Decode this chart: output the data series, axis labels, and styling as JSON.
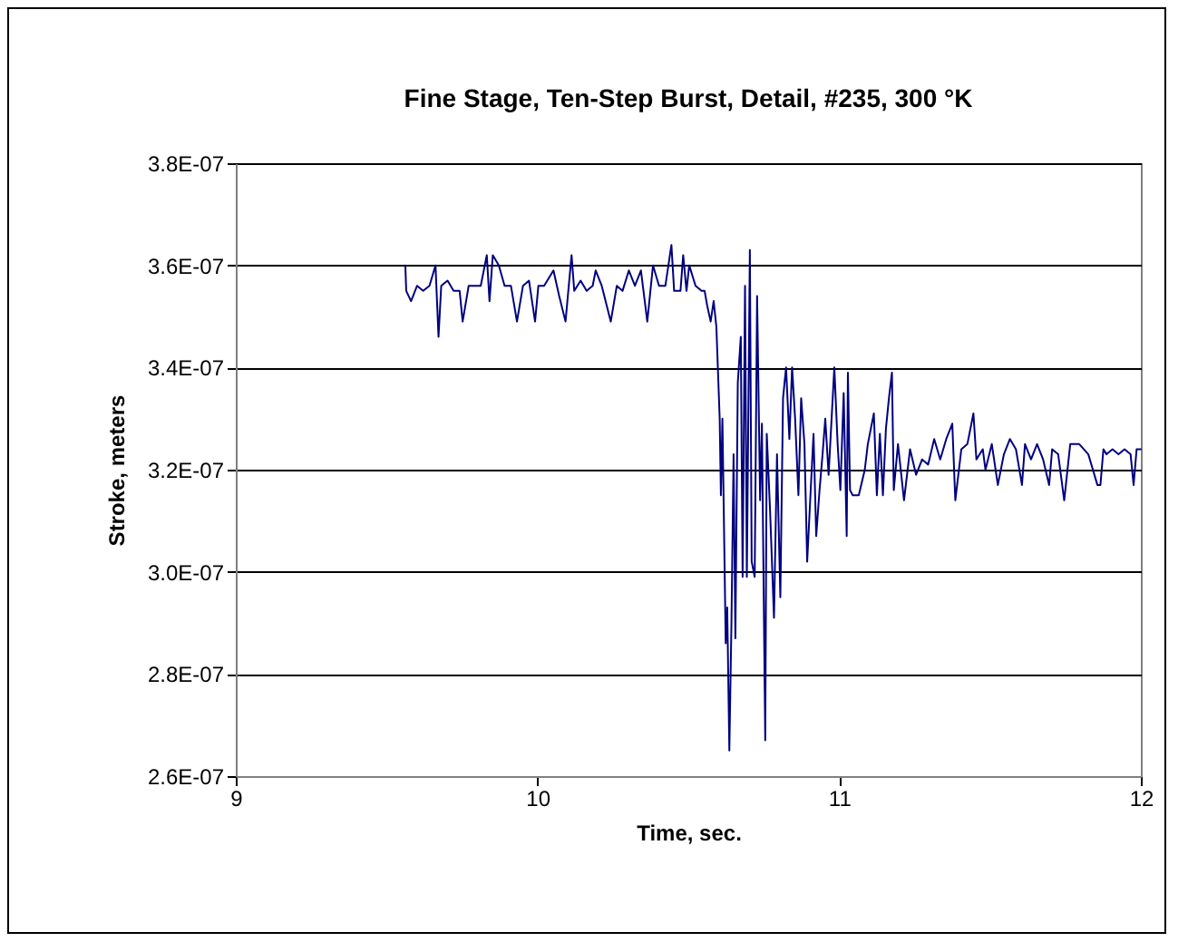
{
  "chart_data": {
    "type": "line",
    "title": "Fine Stage, Ten-Step Burst, Detail, #235, 300 °K",
    "xlabel": "Time, sec.",
    "ylabel": "Stroke, meters",
    "xlim": [
      9,
      12
    ],
    "xticks": [
      9,
      10,
      11,
      12
    ],
    "ylim": [
      2.6e-07,
      3.8e-07
    ],
    "yticks": [
      {
        "value": 2.6e-07,
        "label": "2.6E-07"
      },
      {
        "value": 2.8e-07,
        "label": "2.8E-07"
      },
      {
        "value": 3e-07,
        "label": "3.0E-07"
      },
      {
        "value": 3.2e-07,
        "label": "3.2E-07"
      },
      {
        "value": 3.4e-07,
        "label": "3.4E-07"
      },
      {
        "value": 3.6e-07,
        "label": "3.6E-07"
      },
      {
        "value": 3.8e-07,
        "label": "3.8E-07"
      }
    ],
    "grid": "y",
    "marker": "none",
    "line_style": "solid",
    "series": [
      {
        "color": "#000080",
        "x": [
          9.562,
          9.565,
          9.581,
          9.601,
          9.621,
          9.642,
          9.662,
          9.672,
          9.681,
          9.702,
          9.722,
          9.742,
          9.752,
          9.772,
          9.792,
          9.812,
          9.832,
          9.841,
          9.852,
          9.872,
          9.891,
          9.912,
          9.932,
          9.952,
          9.972,
          9.992,
          10.003,
          10.022,
          10.053,
          10.072,
          10.093,
          10.113,
          10.122,
          10.143,
          10.163,
          10.183,
          10.193,
          10.213,
          10.243,
          10.263,
          10.282,
          10.303,
          10.323,
          10.343,
          10.364,
          10.383,
          10.403,
          10.424,
          10.444,
          10.453,
          10.474,
          10.483,
          10.494,
          10.503,
          10.524,
          10.544,
          10.554,
          10.563,
          10.574,
          10.584,
          10.593,
          10.604,
          10.608,
          10.613,
          10.624,
          10.629,
          10.636,
          10.643,
          10.65,
          10.656,
          10.664,
          10.674,
          10.68,
          10.688,
          10.694,
          10.704,
          10.71,
          10.72,
          10.728,
          10.738,
          10.744,
          10.755,
          10.76,
          10.771,
          10.784,
          10.794,
          10.805,
          10.814,
          10.824,
          10.835,
          10.844,
          10.854,
          10.865,
          10.874,
          10.885,
          10.894,
          10.904,
          10.915,
          10.924,
          10.935,
          10.945,
          10.954,
          10.965,
          10.984,
          10.995,
          11.004,
          11.015,
          11.025,
          11.029,
          11.036,
          11.045,
          11.065,
          11.085,
          11.095,
          11.115,
          11.125,
          11.135,
          11.145,
          11.155,
          11.165,
          11.175,
          11.181,
          11.195,
          11.215,
          11.235,
          11.255,
          11.275,
          11.295,
          11.315,
          11.335,
          11.355,
          11.375,
          11.385,
          11.405,
          11.425,
          11.445,
          11.455,
          11.476,
          11.485,
          11.506,
          11.526,
          11.546,
          11.566,
          11.586,
          11.606,
          11.616,
          11.636,
          11.656,
          11.676,
          11.696,
          11.706,
          11.726,
          11.746,
          11.766,
          11.796,
          11.826,
          11.856,
          11.866,
          11.876,
          11.886,
          11.906,
          11.926,
          11.946,
          11.966,
          11.976,
          11.986,
          12.0
        ],
        "values": [
          3.6e-07,
          3.55e-07,
          3.53e-07,
          3.56e-07,
          3.55e-07,
          3.56e-07,
          3.6e-07,
          3.46e-07,
          3.56e-07,
          3.57e-07,
          3.55e-07,
          3.55e-07,
          3.49e-07,
          3.56e-07,
          3.56e-07,
          3.56e-07,
          3.62e-07,
          3.53e-07,
          3.62e-07,
          3.6e-07,
          3.56e-07,
          3.56e-07,
          3.49e-07,
          3.56e-07,
          3.57e-07,
          3.49e-07,
          3.56e-07,
          3.56e-07,
          3.59e-07,
          3.54e-07,
          3.49e-07,
          3.62e-07,
          3.55e-07,
          3.57e-07,
          3.55e-07,
          3.56e-07,
          3.59e-07,
          3.56e-07,
          3.49e-07,
          3.56e-07,
          3.55e-07,
          3.59e-07,
          3.56e-07,
          3.59e-07,
          3.49e-07,
          3.6e-07,
          3.56e-07,
          3.56e-07,
          3.64e-07,
          3.55e-07,
          3.55e-07,
          3.62e-07,
          3.55e-07,
          3.6e-07,
          3.56e-07,
          3.55e-07,
          3.55e-07,
          3.52e-07,
          3.49e-07,
          3.53e-07,
          3.48e-07,
          3.3e-07,
          3.15e-07,
          3.3e-07,
          2.86e-07,
          2.93e-07,
          2.65e-07,
          2.9e-07,
          3.23e-07,
          2.87e-07,
          3.37e-07,
          3.46e-07,
          2.99e-07,
          3.56e-07,
          2.99e-07,
          3.63e-07,
          3.02e-07,
          2.99e-07,
          3.54e-07,
          3.14e-07,
          3.29e-07,
          2.67e-07,
          3.27e-07,
          3.12e-07,
          2.91e-07,
          3.23e-07,
          2.95e-07,
          3.34e-07,
          3.4e-07,
          3.26e-07,
          3.4e-07,
          3.3e-07,
          3.15e-07,
          3.34e-07,
          3.25e-07,
          3.02e-07,
          3.14e-07,
          3.27e-07,
          3.07e-07,
          3.16e-07,
          3.23e-07,
          3.3e-07,
          3.19e-07,
          3.4e-07,
          3.25e-07,
          3.16e-07,
          3.35e-07,
          3.07e-07,
          3.39e-07,
          3.16e-07,
          3.15e-07,
          3.15e-07,
          3.2e-07,
          3.25e-07,
          3.31e-07,
          3.15e-07,
          3.27e-07,
          3.15e-07,
          3.28e-07,
          3.34e-07,
          3.39e-07,
          3.16e-07,
          3.25e-07,
          3.14e-07,
          3.24e-07,
          3.19e-07,
          3.22e-07,
          3.21e-07,
          3.26e-07,
          3.22e-07,
          3.26e-07,
          3.29e-07,
          3.14e-07,
          3.24e-07,
          3.25e-07,
          3.31e-07,
          3.22e-07,
          3.24e-07,
          3.2e-07,
          3.25e-07,
          3.17e-07,
          3.23e-07,
          3.26e-07,
          3.24e-07,
          3.17e-07,
          3.25e-07,
          3.22e-07,
          3.25e-07,
          3.22e-07,
          3.17e-07,
          3.24e-07,
          3.23e-07,
          3.14e-07,
          3.25e-07,
          3.25e-07,
          3.23e-07,
          3.17e-07,
          3.17e-07,
          3.24e-07,
          3.23e-07,
          3.24e-07,
          3.23e-07,
          3.24e-07,
          3.23e-07,
          3.17e-07,
          3.24e-07,
          3.24e-07
        ]
      }
    ]
  }
}
